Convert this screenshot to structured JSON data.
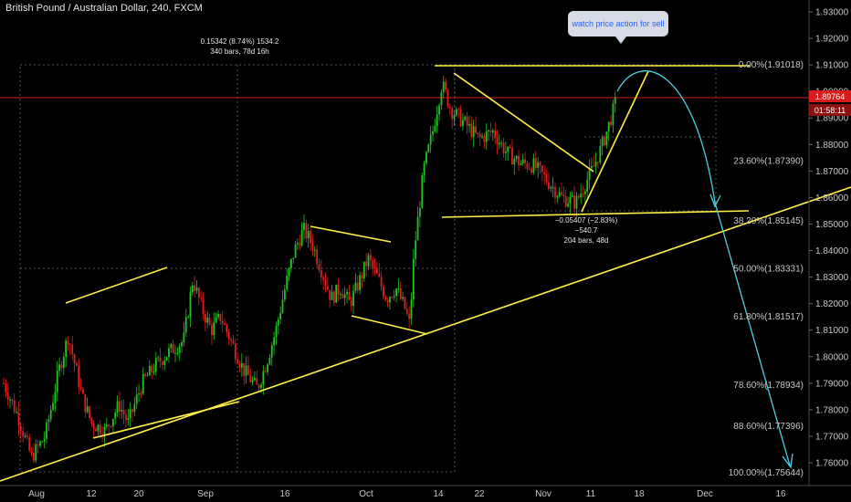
{
  "title": "British Pound / Australian Dollar, 240, FXCM",
  "callout": "watch price action for sell",
  "measure_top": {
    "line1": "0.15342 (8.74%) 1534.2",
    "line2": "340 bars, 78d 16h"
  },
  "measure_bottom": {
    "line1": "−0.05407 (−2.83%) −540.7",
    "line2": "204 bars, 48d"
  },
  "current_price": "1.89764",
  "countdown": "01:58:11",
  "colors": {
    "up": "#22c322",
    "down": "#e02020",
    "trend": "#ffee44",
    "projection": "#4dd0e1",
    "price_line": "#d81b1b"
  },
  "chart_data": {
    "type": "candlestick",
    "title": "British Pound / Australian Dollar, 240, FXCM",
    "y_axis": {
      "ticks": [
        "1.93000",
        "1.92000",
        "1.91000",
        "1.90000",
        "1.89000",
        "1.88000",
        "1.87000",
        "1.86000",
        "1.85000",
        "1.84000",
        "1.83000",
        "1.82000",
        "1.81000",
        "1.80000",
        "1.79000",
        "1.78000",
        "1.77000",
        "1.76000"
      ],
      "range": [
        1.755,
        1.935
      ]
    },
    "x_axis": {
      "ticks": [
        "Aug",
        "12",
        "20",
        "Sep",
        "16",
        "Oct",
        "14",
        "22",
        "Nov",
        "11",
        "18",
        "Dec",
        "16"
      ]
    },
    "fib_levels": [
      {
        "label": "0.00%(1.91018)",
        "value": 1.91018
      },
      {
        "label": "23.60%(1.87390)",
        "value": 1.8739
      },
      {
        "label": "38.20%(1.85145)",
        "value": 1.85145
      },
      {
        "label": "50.00%(1.83331)",
        "value": 1.83331
      },
      {
        "label": "61.80%(1.81517)",
        "value": 1.81517
      },
      {
        "label": "78.60%(1.78934)",
        "value": 1.78934
      },
      {
        "label": "88.60%(1.77396)",
        "value": 1.77396
      },
      {
        "label": "100.00%(1.75644)",
        "value": 1.75644
      }
    ],
    "path": [
      [
        0,
        1.79
      ],
      [
        3,
        1.778
      ],
      [
        6,
        1.762
      ],
      [
        9,
        1.77
      ],
      [
        12,
        1.795
      ],
      [
        14,
        1.808
      ],
      [
        17,
        1.785
      ],
      [
        19,
        1.775
      ],
      [
        22,
        1.772
      ],
      [
        25,
        1.782
      ],
      [
        27,
        1.775
      ],
      [
        30,
        1.79
      ],
      [
        33,
        1.797
      ],
      [
        36,
        1.802
      ],
      [
        39,
        1.806
      ],
      [
        41,
        1.829
      ],
      [
        43,
        1.818
      ],
      [
        45,
        1.81
      ],
      [
        47,
        1.815
      ],
      [
        50,
        1.803
      ],
      [
        52,
        1.795
      ],
      [
        55,
        1.788
      ],
      [
        57,
        1.798
      ],
      [
        59,
        1.81
      ],
      [
        61,
        1.826
      ],
      [
        63,
        1.84
      ],
      [
        65,
        1.848
      ],
      [
        67,
        1.842
      ],
      [
        69,
        1.832
      ],
      [
        71,
        1.822
      ],
      [
        73,
        1.826
      ],
      [
        75,
        1.82
      ],
      [
        77,
        1.828
      ],
      [
        79,
        1.837
      ],
      [
        81,
        1.83
      ],
      [
        83,
        1.822
      ],
      [
        85,
        1.826
      ],
      [
        87,
        1.818
      ],
      [
        88,
        1.812
      ],
      [
        89,
        1.84
      ],
      [
        91,
        1.87
      ],
      [
        93,
        1.885
      ],
      [
        95,
        1.903
      ],
      [
        97,
        1.893
      ],
      [
        100,
        1.888
      ],
      [
        103,
        1.882
      ],
      [
        106,
        1.885
      ],
      [
        109,
        1.877
      ],
      [
        112,
        1.873
      ],
      [
        115,
        1.872
      ],
      [
        118,
        1.866
      ],
      [
        121,
        1.86
      ],
      [
        124,
        1.858
      ],
      [
        126,
        1.865
      ],
      [
        128,
        1.872
      ],
      [
        130,
        1.881
      ],
      [
        132,
        1.892
      ],
      [
        133,
        1.898
      ]
    ]
  }
}
